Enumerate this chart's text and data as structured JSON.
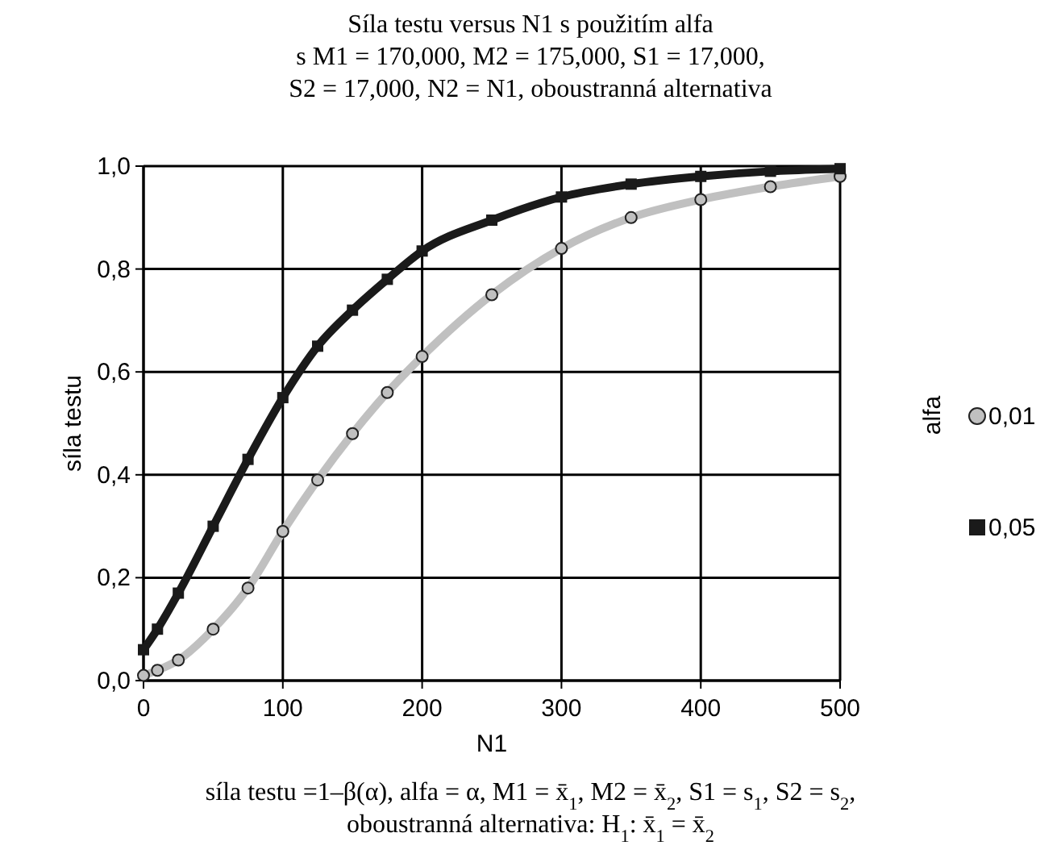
{
  "chart_data": {
    "type": "line",
    "title": "Síla testu versus N1 s použitím alfa",
    "subtitle": "s M1 = 170,000, M2 = 175,000, S1 = 17,000,\nS2 = 17,000, N2 = N1, oboustranná alternativa",
    "xlabel": "N1",
    "ylabel": "síla testu",
    "legend_title": "alfa",
    "annotations": [
      "síla testu =1–β(α), alfa = α, M1 = x̄$_{1}$, M2 = x̄$_{2}$, S1 = s$_{1}$, S2 = s$_{2}$,",
      "oboustranná alternativa: H$_{1}$: x̄$_{1}$ = x̄$_{2}$"
    ],
    "x": [
      0,
      10,
      25,
      50,
      75,
      100,
      125,
      150,
      175,
      200,
      250,
      300,
      350,
      400,
      450,
      500
    ],
    "series": [
      {
        "name": "0,01",
        "color": "#c0c0c0",
        "marker": "circle",
        "values": [
          0.01,
          0.02,
          0.04,
          0.1,
          0.18,
          0.29,
          0.39,
          0.48,
          0.56,
          0.63,
          0.75,
          0.84,
          0.9,
          0.935,
          0.96,
          0.98
        ]
      },
      {
        "name": "0,05",
        "color": "#1a1a1a",
        "marker": "square",
        "values": [
          0.06,
          0.1,
          0.17,
          0.3,
          0.43,
          0.55,
          0.65,
          0.72,
          0.78,
          0.835,
          0.895,
          0.94,
          0.965,
          0.98,
          0.99,
          0.995
        ]
      }
    ],
    "xlim": [
      0,
      500
    ],
    "xticks": [
      0,
      100,
      200,
      300,
      400,
      500
    ],
    "ylim": [
      0,
      1
    ],
    "yticks": [
      {
        "value": 0,
        "label": "0,0"
      },
      {
        "value": 0.2,
        "label": "0,2"
      },
      {
        "value": 0.4,
        "label": "0,4"
      },
      {
        "value": 0.6,
        "label": "0,6"
      },
      {
        "value": 0.8,
        "label": "0,8"
      },
      {
        "value": 1,
        "label": "1,0"
      }
    ],
    "grid": true,
    "legend": "right"
  }
}
